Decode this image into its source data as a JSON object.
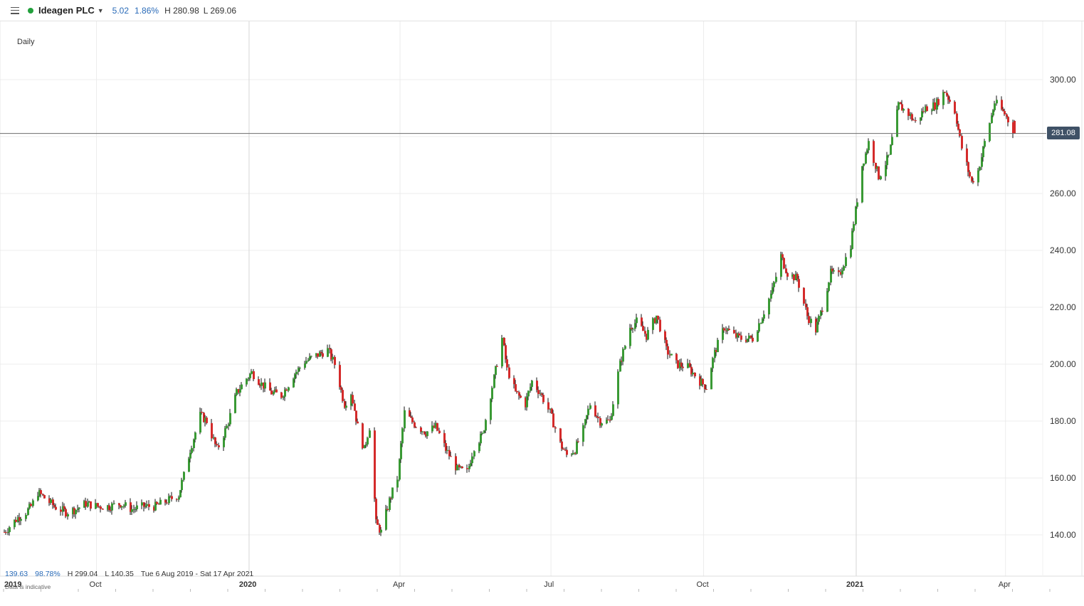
{
  "header": {
    "menu_icon": "hamburger-menu-icon",
    "status_color": "#22a03c",
    "instrument": "Ideagen PLC",
    "change": "5.02",
    "change_pct": "1.86%",
    "high": "H 280.98",
    "low": "L 269.06"
  },
  "interval": "Daily",
  "stats": {
    "range_change": "139.63",
    "range_change_pct": "98.78%",
    "high": "H 299.04",
    "low": "L 140.35",
    "date_range": "Tue 6 Aug 2019 - Sat 17 Apr 2021",
    "note": "Data is indicative"
  },
  "current_price": "281.08",
  "chart_data": {
    "type": "candlestick",
    "up_color": "#3a9a35",
    "down_color": "#d42b2b",
    "ylim": [
      120,
      320
    ],
    "y_ticks": [
      "140.00",
      "160.00",
      "180.00",
      "200.00",
      "220.00",
      "240.00",
      "260.00",
      "280.00",
      "300.00"
    ],
    "y_tick_values": [
      140,
      160,
      180,
      200,
      220,
      240,
      260,
      280,
      300
    ],
    "x_ticks": [
      {
        "label": "2019",
        "date": "2019-08-06",
        "bold": true
      },
      {
        "label": "Oct",
        "date": "2019-10-01",
        "bold": false
      },
      {
        "label": "2020",
        "date": "2020-01-01",
        "bold": true
      },
      {
        "label": "Apr",
        "date": "2020-04-01",
        "bold": false
      },
      {
        "label": "Jul",
        "date": "2020-07-01",
        "bold": false
      },
      {
        "label": "Oct",
        "date": "2020-10-01",
        "bold": false
      },
      {
        "label": "2021",
        "date": "2021-01-01",
        "bold": true
      },
      {
        "label": "Apr",
        "date": "2021-04-01",
        "bold": false
      }
    ],
    "x_range": [
      "2019-08-06",
      "2021-04-17"
    ],
    "close_series": [
      [
        "2019-08-06",
        141
      ],
      [
        "2019-08-09",
        143
      ],
      [
        "2019-08-14",
        146
      ],
      [
        "2019-08-19",
        148
      ],
      [
        "2019-08-22",
        150
      ],
      [
        "2019-08-26",
        155
      ],
      [
        "2019-08-30",
        153
      ],
      [
        "2019-09-05",
        150
      ],
      [
        "2019-09-12",
        148
      ],
      [
        "2019-09-18",
        149
      ],
      [
        "2019-09-24",
        151
      ],
      [
        "2019-10-01",
        150
      ],
      [
        "2019-10-08",
        150
      ],
      [
        "2019-10-15",
        151
      ],
      [
        "2019-10-22",
        149
      ],
      [
        "2019-10-29",
        150
      ],
      [
        "2019-11-05",
        150
      ],
      [
        "2019-11-12",
        152
      ],
      [
        "2019-11-19",
        154
      ],
      [
        "2019-11-26",
        170
      ],
      [
        "2019-12-02",
        182
      ],
      [
        "2019-12-06",
        180
      ],
      [
        "2019-12-12",
        170
      ],
      [
        "2019-12-18",
        178
      ],
      [
        "2019-12-24",
        190
      ],
      [
        "2019-12-30",
        195
      ],
      [
        "2020-01-02",
        197
      ],
      [
        "2020-01-08",
        193
      ],
      [
        "2020-01-14",
        190
      ],
      [
        "2020-01-20",
        189
      ],
      [
        "2020-01-27",
        196
      ],
      [
        "2020-02-03",
        201
      ],
      [
        "2020-02-10",
        203
      ],
      [
        "2020-02-17",
        205
      ],
      [
        "2020-02-21",
        200
      ],
      [
        "2020-02-27",
        186
      ],
      [
        "2020-03-02",
        190
      ],
      [
        "2020-03-06",
        178
      ],
      [
        "2020-03-10",
        170
      ],
      [
        "2020-03-13",
        178
      ],
      [
        "2020-03-17",
        144
      ],
      [
        "2020-03-20",
        141
      ],
      [
        "2020-03-25",
        152
      ],
      [
        "2020-03-30",
        160
      ],
      [
        "2020-04-03",
        183
      ],
      [
        "2020-04-09",
        179
      ],
      [
        "2020-04-16",
        176
      ],
      [
        "2020-04-22",
        178
      ],
      [
        "2020-04-28",
        170
      ],
      [
        "2020-05-05",
        163
      ],
      [
        "2020-05-11",
        162
      ],
      [
        "2020-05-15",
        171
      ],
      [
        "2020-05-20",
        175
      ],
      [
        "2020-05-27",
        195
      ],
      [
        "2020-06-01",
        209
      ],
      [
        "2020-06-04",
        198
      ],
      [
        "2020-06-09",
        190
      ],
      [
        "2020-06-15",
        186
      ],
      [
        "2020-06-19",
        194
      ],
      [
        "2020-06-24",
        190
      ],
      [
        "2020-06-30",
        183
      ],
      [
        "2020-07-06",
        172
      ],
      [
        "2020-07-10",
        168
      ],
      [
        "2020-07-15",
        170
      ],
      [
        "2020-07-20",
        177
      ],
      [
        "2020-07-24",
        186
      ],
      [
        "2020-07-30",
        180
      ],
      [
        "2020-08-05",
        180
      ],
      [
        "2020-08-11",
        200
      ],
      [
        "2020-08-17",
        213
      ],
      [
        "2020-08-21",
        215
      ],
      [
        "2020-08-27",
        210
      ],
      [
        "2020-09-02",
        217
      ],
      [
        "2020-09-08",
        205
      ],
      [
        "2020-09-14",
        200
      ],
      [
        "2020-09-21",
        199
      ],
      [
        "2020-09-28",
        194
      ],
      [
        "2020-10-02",
        192
      ],
      [
        "2020-10-07",
        204
      ],
      [
        "2020-10-13",
        213
      ],
      [
        "2020-10-19",
        210
      ],
      [
        "2020-10-23",
        209
      ],
      [
        "2020-10-30",
        209
      ],
      [
        "2020-11-05",
        217
      ],
      [
        "2020-11-11",
        226
      ],
      [
        "2020-11-16",
        238
      ],
      [
        "2020-11-20",
        232
      ],
      [
        "2020-11-26",
        230
      ],
      [
        "2020-12-02",
        217
      ],
      [
        "2020-12-07",
        212
      ],
      [
        "2020-12-11",
        220
      ],
      [
        "2020-12-16",
        232
      ],
      [
        "2020-12-21",
        231
      ],
      [
        "2020-12-28",
        242
      ],
      [
        "2021-01-04",
        270
      ],
      [
        "2021-01-08",
        278
      ],
      [
        "2021-01-14",
        266
      ],
      [
        "2021-01-20",
        273
      ],
      [
        "2021-01-26",
        291
      ],
      [
        "2021-02-01",
        288
      ],
      [
        "2021-02-05",
        285
      ],
      [
        "2021-02-11",
        290
      ],
      [
        "2021-02-17",
        291
      ],
      [
        "2021-02-23",
        296
      ],
      [
        "2021-03-01",
        289
      ],
      [
        "2021-03-05",
        276
      ],
      [
        "2021-03-11",
        264
      ],
      [
        "2021-03-15",
        268
      ],
      [
        "2021-03-19",
        278
      ],
      [
        "2021-03-25",
        292
      ],
      [
        "2021-03-31",
        288
      ],
      [
        "2021-04-06",
        281.08
      ]
    ]
  }
}
